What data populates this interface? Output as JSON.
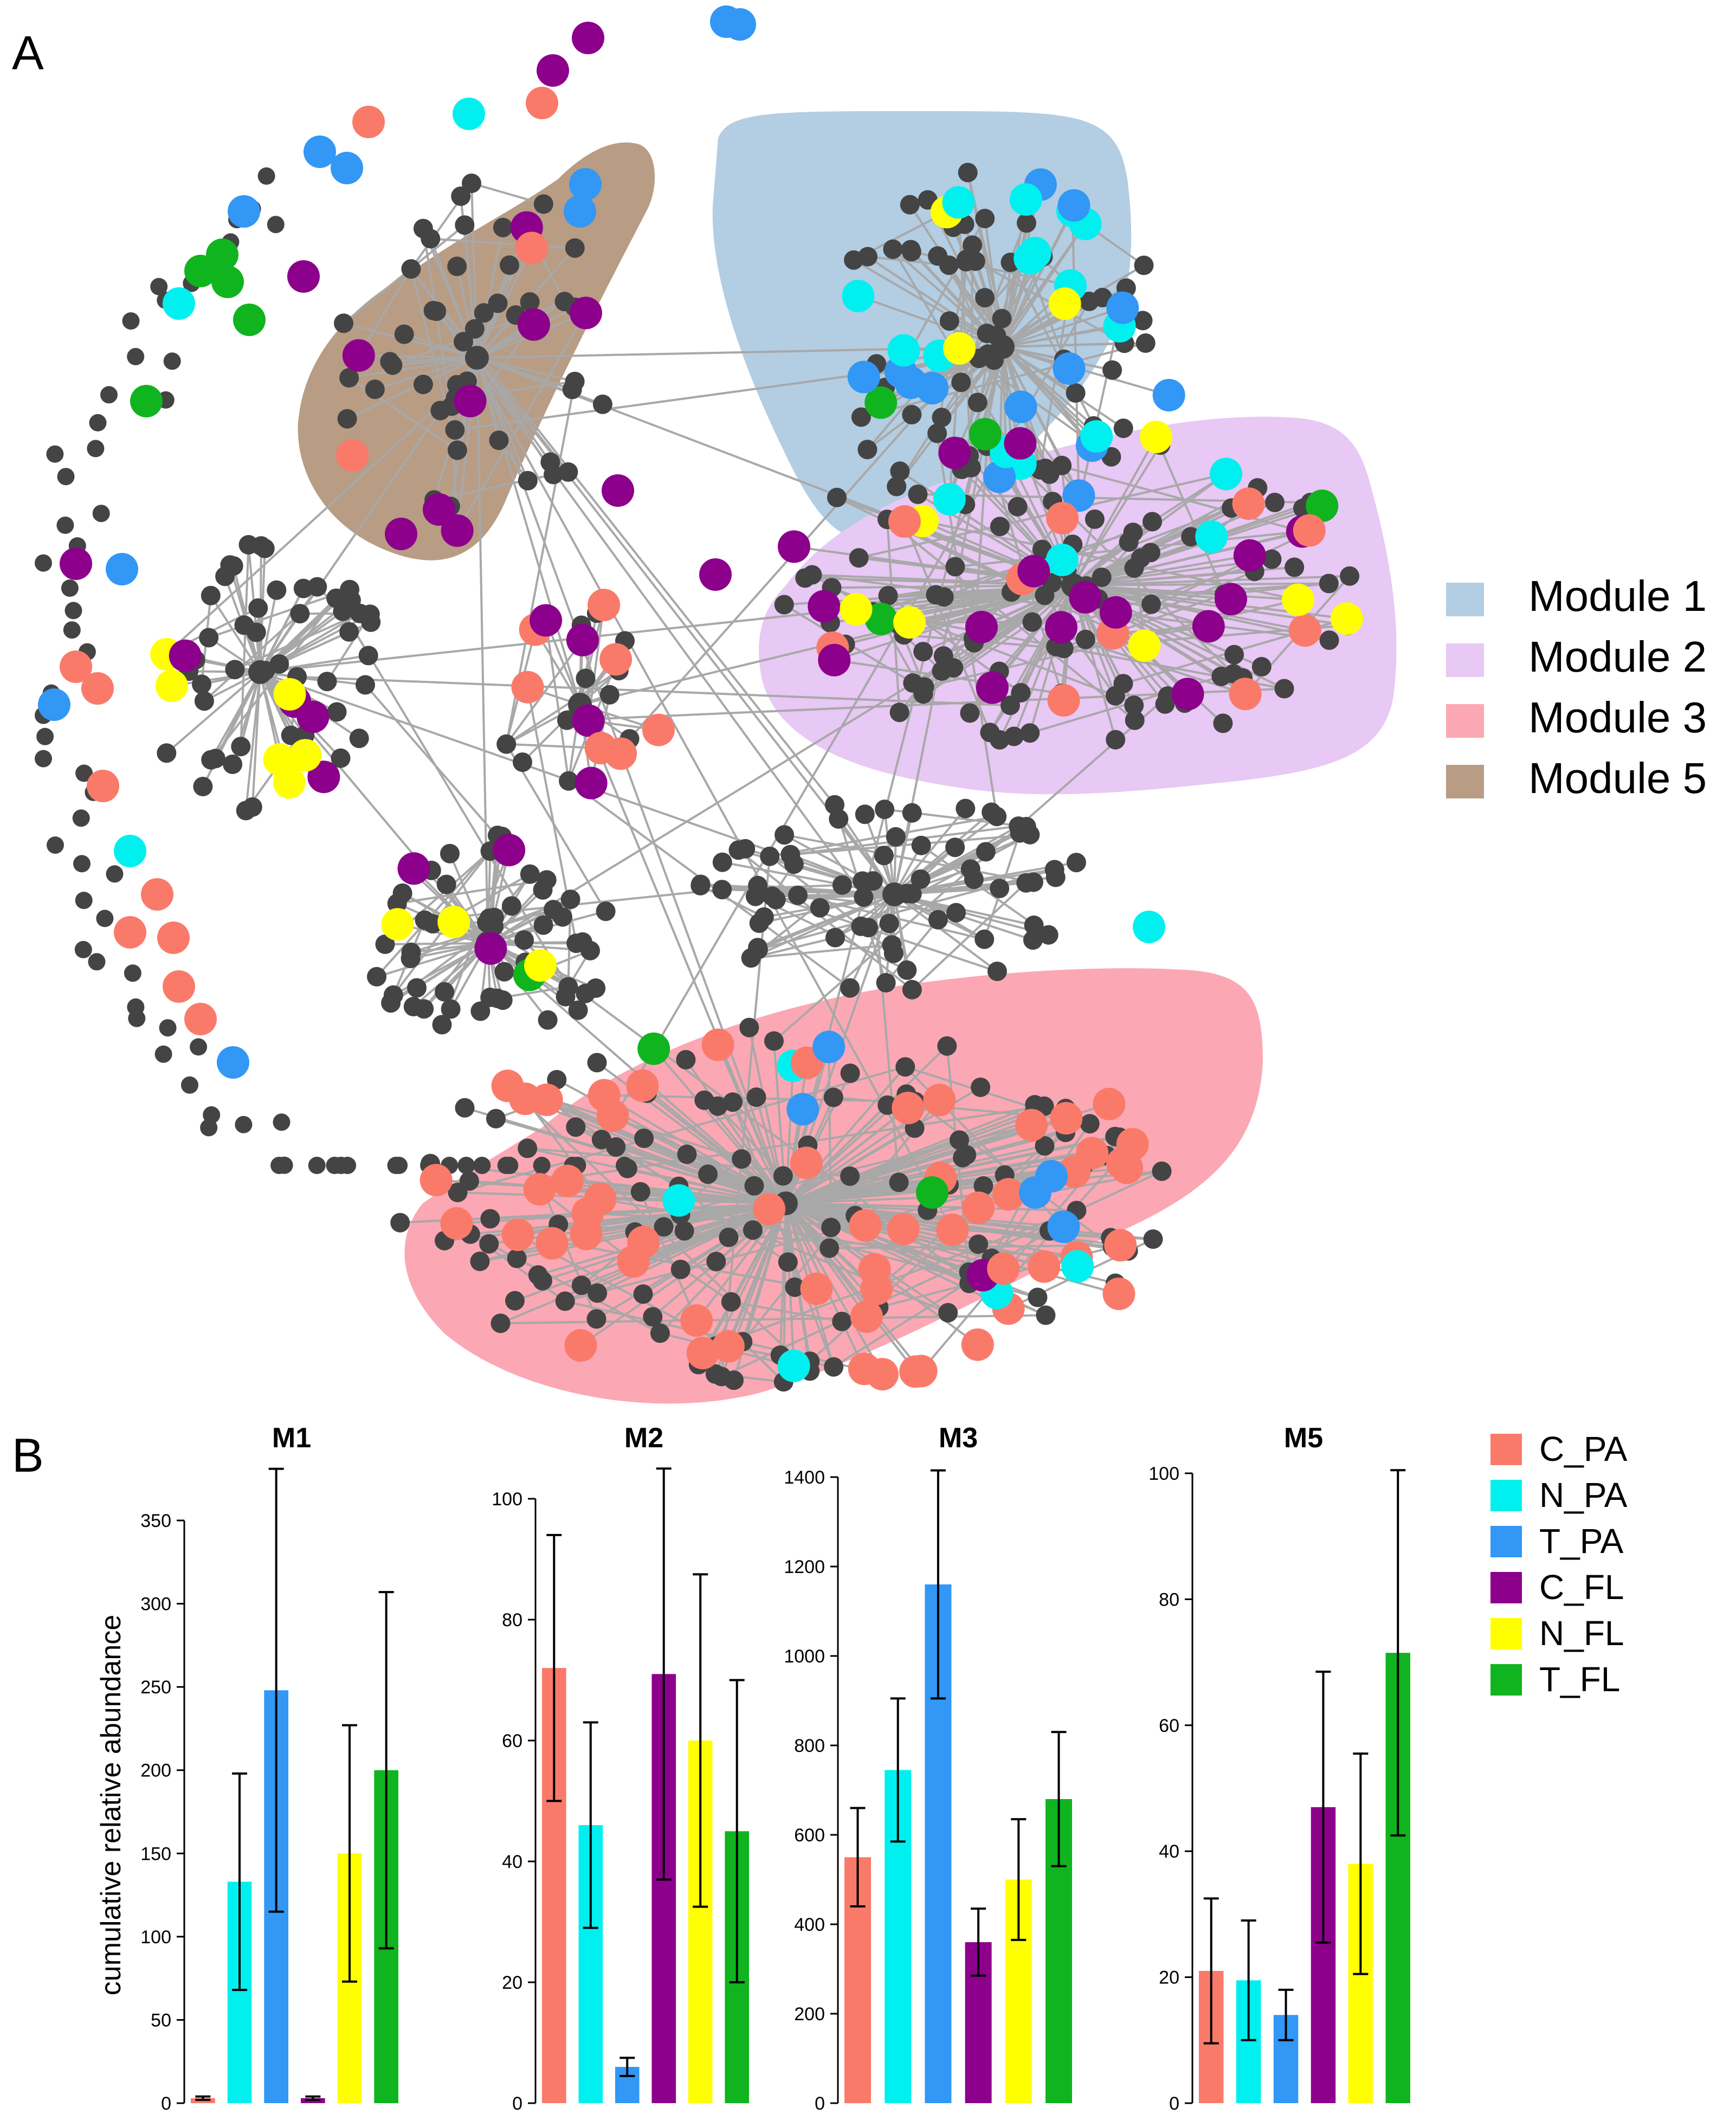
{
  "panel_a_label": "A",
  "panel_b_label": "B",
  "colors": {
    "C_PA": "#fa7a6a",
    "N_PA": "#00f0f0",
    "T_PA": "#3297f5",
    "C_FL": "#8c008c",
    "N_FL": "#ffff00",
    "T_FL": "#10b41e",
    "node": "#444444",
    "edge": "#a8a8a8",
    "module1": "#b3cde3",
    "module2": "#e8c8f4",
    "module3": "#fba8b4",
    "module5": "#b89c84"
  },
  "network_legend": {
    "items": [
      {
        "label": "Module 1",
        "color": "#b3cde3"
      },
      {
        "label": "Module 2",
        "color": "#e8c8f4"
      },
      {
        "label": "Module 3",
        "color": "#fba8b4"
      },
      {
        "label": "Module 5",
        "color": "#b89c84"
      }
    ]
  },
  "bar_legend": {
    "items": [
      {
        "label": "C_PA",
        "color": "#fa7a6a"
      },
      {
        "label": "N_PA",
        "color": "#00f0f0"
      },
      {
        "label": "T_PA",
        "color": "#3297f5"
      },
      {
        "label": "C_FL",
        "color": "#8c008c"
      },
      {
        "label": "N_FL",
        "color": "#ffff00"
      },
      {
        "label": "T_FL",
        "color": "#10b41e"
      }
    ]
  },
  "chart_data": [
    {
      "type": "bar",
      "title": "M1",
      "ylabel": "cumulative relative abundance",
      "categories": [
        "C_PA",
        "N_PA",
        "T_PA",
        "C_FL",
        "N_FL",
        "T_FL"
      ],
      "values": [
        3,
        133,
        248,
        3,
        150,
        200
      ],
      "error": [
        1,
        65,
        133,
        1,
        77,
        107
      ],
      "ylim": [
        0,
        350
      ],
      "yticks": [
        0,
        50,
        100,
        150,
        200,
        250,
        300,
        350
      ]
    },
    {
      "type": "bar",
      "title": "M2",
      "ylabel": "",
      "categories": [
        "C_PA",
        "N_PA",
        "T_PA",
        "C_FL",
        "N_FL",
        "T_FL"
      ],
      "values": [
        72,
        46,
        6,
        71,
        60,
        45
      ],
      "error": [
        22,
        17,
        1.5,
        34,
        27.5,
        25
      ],
      "ylim": [
        0,
        100
      ],
      "yticks": [
        0,
        20,
        40,
        60,
        80,
        100
      ]
    },
    {
      "type": "bar",
      "title": "M3",
      "ylabel": "",
      "categories": [
        "C_PA",
        "N_PA",
        "T_PA",
        "C_FL",
        "N_FL",
        "T_FL"
      ],
      "values": [
        550,
        745,
        1160,
        360,
        500,
        680
      ],
      "error": [
        110,
        160,
        255,
        75,
        135,
        150
      ],
      "ylim": [
        0,
        1400
      ],
      "yticks": [
        0,
        200,
        400,
        600,
        800,
        1000,
        1200,
        1400
      ]
    },
    {
      "type": "bar",
      "title": "M5",
      "ylabel": "",
      "categories": [
        "C_PA",
        "N_PA",
        "T_PA",
        "C_FL",
        "N_FL",
        "T_FL"
      ],
      "values": [
        21,
        19.5,
        14,
        47,
        38,
        71.5
      ],
      "error": [
        11.5,
        9.5,
        4,
        21.5,
        17.5,
        29
      ],
      "ylim": [
        0,
        100
      ],
      "yticks": [
        0,
        20,
        40,
        60,
        80,
        100
      ]
    }
  ]
}
